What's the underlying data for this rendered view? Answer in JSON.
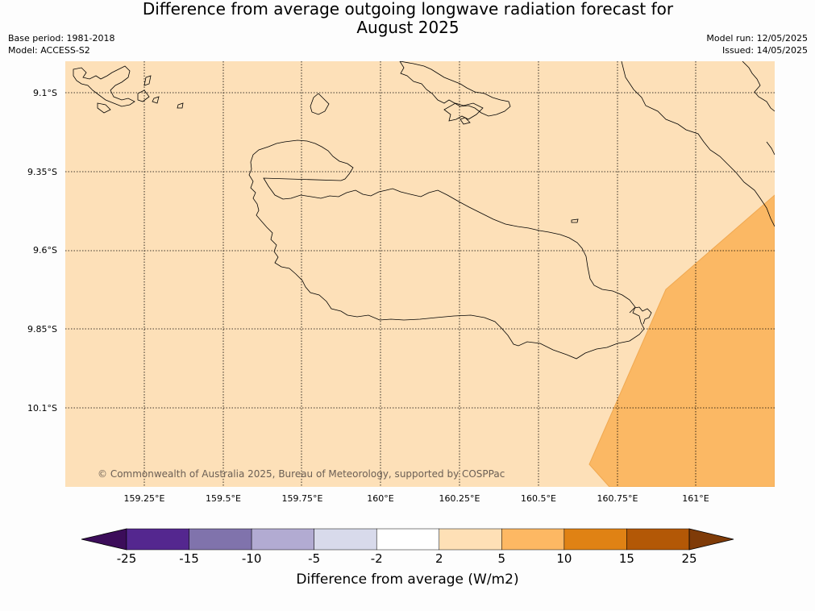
{
  "title_line1": "Difference from average outgoing longwave radiation forecast for",
  "title_line2": "August 2025",
  "base_period": "Base period: 1981-2018",
  "model": "Model: ACCESS-S2",
  "model_run": "Model run: 12/05/2025",
  "issued": "Issued: 14/05/2025",
  "lat_labels": [
    "9.1°S",
    "9.35°S",
    "9.6°S",
    "9.85°S",
    "10.1°S"
  ],
  "lon_labels": [
    "159.25°E",
    "159.5°E",
    "159.75°E",
    "160°E",
    "160.25°E",
    "160.5°E",
    "160.75°E",
    "161°E"
  ],
  "copyright": "© Commonwealth of Australia 2025, Bureau of Meteorology, supported by COSPPac",
  "colorbar": {
    "ticks": [
      "-25",
      "-15",
      "-10",
      "-5",
      "-2",
      "2",
      "5",
      "10",
      "15",
      "25"
    ],
    "colors": [
      "#3c0d5a",
      "#54278f",
      "#8073ac",
      "#b2abd2",
      "#d8daeb",
      "#ffffff",
      "#fee0b6",
      "#fdb863",
      "#e08214",
      "#b35806",
      "#7f3b08"
    ],
    "label": "Difference from average (W/m2)"
  },
  "shaded_region_category": "5 to 10"
}
